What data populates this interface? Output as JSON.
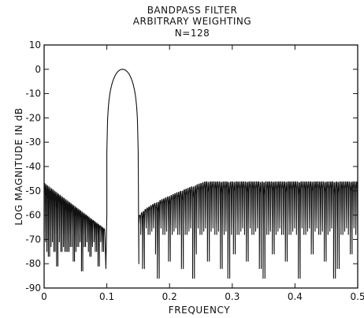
{
  "chart_data": {
    "type": "line",
    "title_lines": [
      "BANDPASS FILTER",
      "ARBITRARY WEIGHTING",
      "N=128"
    ],
    "xlabel": "FREQUENCY",
    "ylabel": "LOG MAGNITUDE IN dB",
    "xlim": [
      0,
      0.5
    ],
    "ylim": [
      -90,
      10
    ],
    "xticks": [
      0,
      0.1,
      0.2,
      0.3,
      0.4,
      0.5
    ],
    "xtick_labels": [
      "0",
      "0.1",
      "0.2",
      "0.3",
      "0.4",
      "0.5"
    ],
    "yticks": [
      10,
      0,
      -10,
      -20,
      -30,
      -40,
      -50,
      -60,
      -70,
      -80,
      -90
    ],
    "ytick_labels": [
      "10",
      "0",
      "-10",
      "-20",
      "-30",
      "-40",
      "-50",
      "-60",
      "-70",
      "-80",
      "-90"
    ],
    "grid": false,
    "passband": {
      "lower_edge": 0.1,
      "upper_edge": 0.15,
      "center": 0.125,
      "peak_db": 0
    },
    "stopband_1": {
      "range": [
        0,
        0.1
      ],
      "sidelobe_peaks_db": [
        -47,
        -49,
        -51,
        -53,
        -55,
        -57,
        -59,
        -61,
        -63,
        -66
      ]
    },
    "stopband_2": {
      "range": [
        0.15,
        0.5
      ],
      "sidelobe_peaks_db_start": -60,
      "sidelobe_peaks_db_end": -46
    },
    "series": [
      {
        "values_description_omitted": true
      }
    ]
  }
}
